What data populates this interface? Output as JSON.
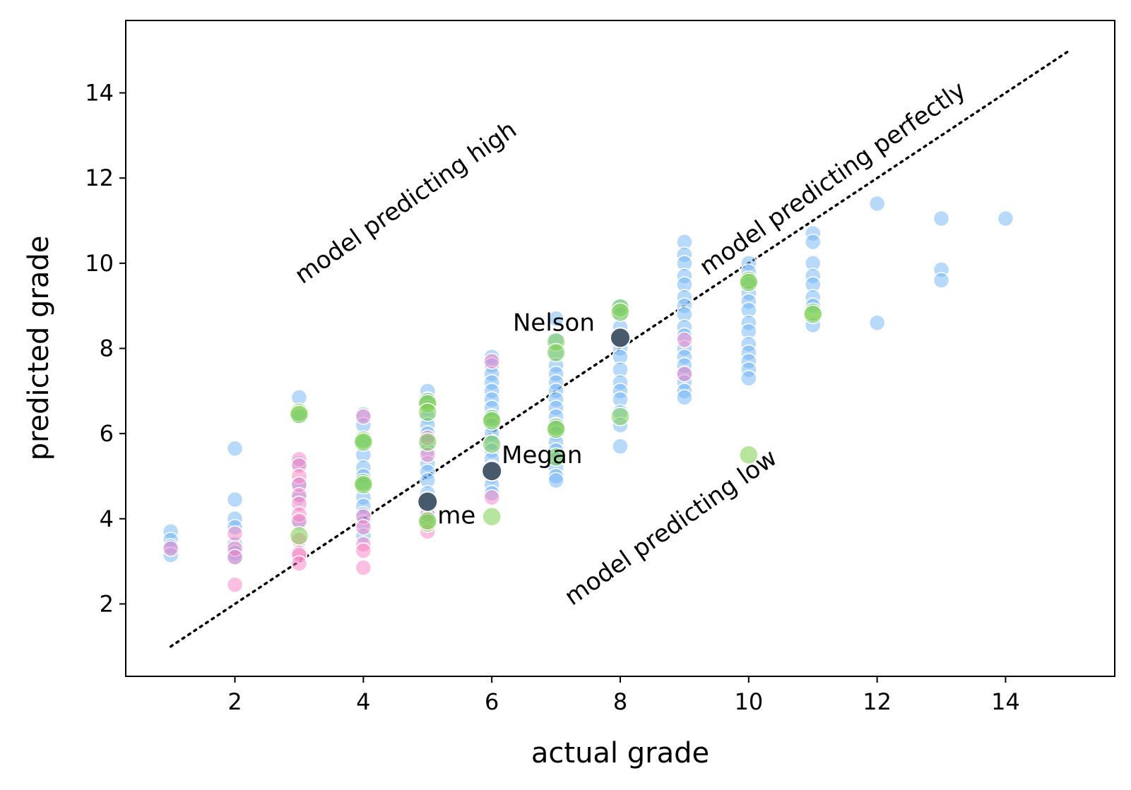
{
  "chart_data": {
    "type": "scatter",
    "title": "",
    "xlabel": "actual grade",
    "ylabel": "predicted grade",
    "xlim": [
      0.3,
      15.7
    ],
    "ylim": [
      0.3,
      15.7
    ],
    "xticks": [
      2,
      4,
      6,
      8,
      10,
      12,
      14
    ],
    "yticks": [
      2,
      4,
      6,
      8,
      10,
      12,
      14
    ],
    "colors": {
      "blue": "#6fb4f6",
      "pink": "#f57fc3",
      "green": "#7ccf4c",
      "highlight": "#475a6b",
      "reference_line": "#000000"
    },
    "reference_line": {
      "style": "dotted",
      "from": [
        1,
        1
      ],
      "to": [
        15,
        15
      ]
    },
    "series": [
      {
        "name": "blue",
        "points": [
          [
            1,
            3.7
          ],
          [
            1,
            3.5
          ],
          [
            1,
            3.35
          ],
          [
            1,
            3.15
          ],
          [
            2,
            5.65
          ],
          [
            2,
            4.45
          ],
          [
            2,
            4.0
          ],
          [
            2,
            3.8
          ],
          [
            2,
            3.4
          ],
          [
            2,
            3.2
          ],
          [
            2,
            3.1
          ],
          [
            3,
            6.85
          ],
          [
            3,
            6.4
          ],
          [
            3,
            5.3
          ],
          [
            3,
            4.8
          ],
          [
            3,
            4.5
          ],
          [
            3,
            3.9
          ],
          [
            4,
            6.45
          ],
          [
            4,
            6.2
          ],
          [
            4,
            5.8
          ],
          [
            4,
            5.5
          ],
          [
            4,
            5.2
          ],
          [
            4,
            5.0
          ],
          [
            4,
            4.8
          ],
          [
            4,
            4.5
          ],
          [
            4,
            4.3
          ],
          [
            4,
            4.1
          ],
          [
            4,
            3.9
          ],
          [
            4,
            3.6
          ],
          [
            5,
            7.0
          ],
          [
            5,
            6.8
          ],
          [
            5,
            6.6
          ],
          [
            5,
            6.4
          ],
          [
            5,
            6.2
          ],
          [
            5,
            6.0
          ],
          [
            5,
            5.8
          ],
          [
            5,
            5.6
          ],
          [
            5,
            5.3
          ],
          [
            5,
            5.1
          ],
          [
            5,
            4.9
          ],
          [
            5,
            4.6
          ],
          [
            5,
            4.4
          ],
          [
            5,
            4.2
          ],
          [
            5,
            4.0
          ],
          [
            6,
            7.8
          ],
          [
            6,
            7.6
          ],
          [
            6,
            7.4
          ],
          [
            6,
            7.2
          ],
          [
            6,
            7.0
          ],
          [
            6,
            6.8
          ],
          [
            6,
            6.6
          ],
          [
            6,
            6.4
          ],
          [
            6,
            6.2
          ],
          [
            6,
            6.0
          ],
          [
            6,
            5.8
          ],
          [
            6,
            5.6
          ],
          [
            6,
            5.4
          ],
          [
            6,
            5.2
          ],
          [
            6,
            5.0
          ],
          [
            6,
            4.8
          ],
          [
            6,
            4.6
          ],
          [
            7,
            8.7
          ],
          [
            7,
            8.2
          ],
          [
            7,
            7.9
          ],
          [
            7,
            7.6
          ],
          [
            7,
            7.4
          ],
          [
            7,
            7.2
          ],
          [
            7,
            7.0
          ],
          [
            7,
            6.8
          ],
          [
            7,
            6.6
          ],
          [
            7,
            6.4
          ],
          [
            7,
            6.2
          ],
          [
            7,
            6.0
          ],
          [
            7,
            5.8
          ],
          [
            7,
            5.6
          ],
          [
            7,
            5.4
          ],
          [
            7,
            5.2
          ],
          [
            7,
            5.0
          ],
          [
            7,
            4.9
          ],
          [
            8,
            9.0
          ],
          [
            8,
            8.8
          ],
          [
            8,
            8.5
          ],
          [
            8,
            8.3
          ],
          [
            8,
            8.0
          ],
          [
            8,
            7.8
          ],
          [
            8,
            7.5
          ],
          [
            8,
            7.2
          ],
          [
            8,
            7.0
          ],
          [
            8,
            6.8
          ],
          [
            8,
            6.5
          ],
          [
            8,
            6.2
          ],
          [
            8,
            5.7
          ],
          [
            9,
            10.5
          ],
          [
            9,
            10.2
          ],
          [
            9,
            10.0
          ],
          [
            9,
            9.7
          ],
          [
            9,
            9.5
          ],
          [
            9,
            9.2
          ],
          [
            9,
            9.0
          ],
          [
            9,
            8.8
          ],
          [
            9,
            8.5
          ],
          [
            9,
            8.3
          ],
          [
            9,
            8.0
          ],
          [
            9,
            7.8
          ],
          [
            9,
            7.6
          ],
          [
            9,
            7.4
          ],
          [
            9,
            7.2
          ],
          [
            9,
            7.0
          ],
          [
            9,
            6.85
          ],
          [
            10,
            10.0
          ],
          [
            10,
            9.8
          ],
          [
            10,
            9.5
          ],
          [
            10,
            9.3
          ],
          [
            10,
            9.1
          ],
          [
            10,
            8.9
          ],
          [
            10,
            8.6
          ],
          [
            10,
            8.4
          ],
          [
            10,
            8.1
          ],
          [
            10,
            7.9
          ],
          [
            10,
            7.7
          ],
          [
            10,
            7.5
          ],
          [
            10,
            7.3
          ],
          [
            11,
            10.7
          ],
          [
            11,
            10.5
          ],
          [
            11,
            10.0
          ],
          [
            11,
            9.7
          ],
          [
            11,
            9.5
          ],
          [
            11,
            9.2
          ],
          [
            11,
            9.0
          ],
          [
            11,
            8.55
          ],
          [
            12,
            11.4
          ],
          [
            12,
            8.6
          ],
          [
            13,
            11.05
          ],
          [
            13,
            9.85
          ],
          [
            13,
            9.6
          ],
          [
            14,
            11.05
          ]
        ]
      },
      {
        "name": "pink",
        "points": [
          [
            1,
            3.3
          ],
          [
            2,
            3.65
          ],
          [
            2,
            3.3
          ],
          [
            2,
            3.1
          ],
          [
            2,
            2.45
          ],
          [
            3,
            5.4
          ],
          [
            3,
            5.25
          ],
          [
            3,
            5.0
          ],
          [
            3,
            4.8
          ],
          [
            3,
            4.55
          ],
          [
            3,
            4.35
          ],
          [
            3,
            4.1
          ],
          [
            3,
            3.95
          ],
          [
            3,
            3.5
          ],
          [
            3,
            3.2
          ],
          [
            3,
            3.15
          ],
          [
            3,
            2.95
          ],
          [
            4,
            6.4
          ],
          [
            4,
            4.05
          ],
          [
            4,
            3.8
          ],
          [
            4,
            3.4
          ],
          [
            4,
            3.25
          ],
          [
            4,
            2.85
          ],
          [
            5,
            5.9
          ],
          [
            5,
            5.5
          ],
          [
            5,
            4.1
          ],
          [
            5,
            3.7
          ],
          [
            6,
            7.7
          ],
          [
            6,
            4.5
          ],
          [
            9,
            8.2
          ],
          [
            9,
            7.4
          ]
        ]
      },
      {
        "name": "green",
        "points": [
          [
            3,
            6.5
          ],
          [
            3,
            6.45
          ],
          [
            3,
            3.6
          ],
          [
            4,
            5.85
          ],
          [
            4,
            5.8
          ],
          [
            4,
            4.85
          ],
          [
            4,
            4.8
          ],
          [
            5,
            6.75
          ],
          [
            5,
            6.7
          ],
          [
            5,
            6.5
          ],
          [
            5,
            5.8
          ],
          [
            5,
            3.9
          ],
          [
            5,
            3.95
          ],
          [
            6,
            6.35
          ],
          [
            6,
            6.3
          ],
          [
            6,
            5.75
          ],
          [
            6,
            4.05
          ],
          [
            7,
            8.15
          ],
          [
            7,
            7.9
          ],
          [
            7,
            6.15
          ],
          [
            7,
            6.1
          ],
          [
            7,
            5.45
          ],
          [
            8,
            8.95
          ],
          [
            8,
            8.85
          ],
          [
            8,
            6.4
          ],
          [
            10,
            9.6
          ],
          [
            10,
            9.55
          ],
          [
            10,
            5.5
          ],
          [
            11,
            8.85
          ],
          [
            11,
            8.8
          ]
        ]
      }
    ],
    "highlighted": [
      {
        "label": "Nelson",
        "x": 8,
        "y": 8.25
      },
      {
        "label": "Megan",
        "x": 6,
        "y": 5.12
      },
      {
        "label": "me",
        "x": 5,
        "y": 4.4
      }
    ],
    "annotations": [
      {
        "text": "model predicting high",
        "x": 3.05,
        "y": 9.5,
        "rotation_deg": 35
      },
      {
        "text": "model predicting perfectly",
        "x": 9.35,
        "y": 9.7,
        "rotation_deg": 35
      },
      {
        "text": "model predicting low",
        "x": 7.25,
        "y": 1.95,
        "rotation_deg": 35
      }
    ]
  }
}
